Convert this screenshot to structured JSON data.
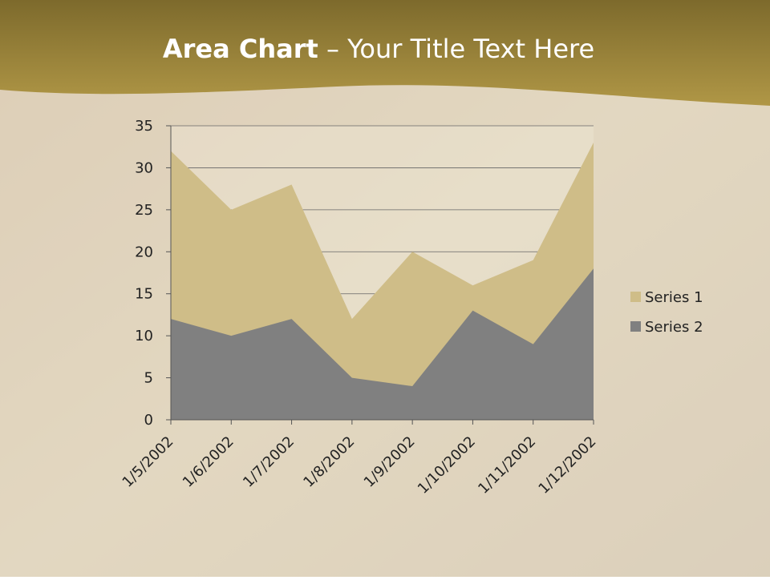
{
  "slide": {
    "title_bold": "Area Chart",
    "title_rest": "– Your Title Text Here"
  },
  "chart_data": {
    "type": "area",
    "categories": [
      "1/5/2002",
      "1/6/2002",
      "1/7/2002",
      "1/8/2002",
      "1/9/2002",
      "1/10/2002",
      "1/11/2002",
      "1/12/2002"
    ],
    "series": [
      {
        "name": "Series 1",
        "color": "#cfbd88",
        "values": [
          32,
          25,
          28,
          12,
          20,
          16,
          19,
          33
        ]
      },
      {
        "name": "Series 2",
        "color": "#808080",
        "values": [
          12,
          10,
          12,
          5,
          4,
          13,
          9,
          18
        ]
      }
    ],
    "ylim": [
      0,
      35
    ],
    "yticks": [
      0,
      5,
      10,
      15,
      20,
      25,
      30,
      35
    ],
    "grid": true,
    "legend": "right"
  }
}
